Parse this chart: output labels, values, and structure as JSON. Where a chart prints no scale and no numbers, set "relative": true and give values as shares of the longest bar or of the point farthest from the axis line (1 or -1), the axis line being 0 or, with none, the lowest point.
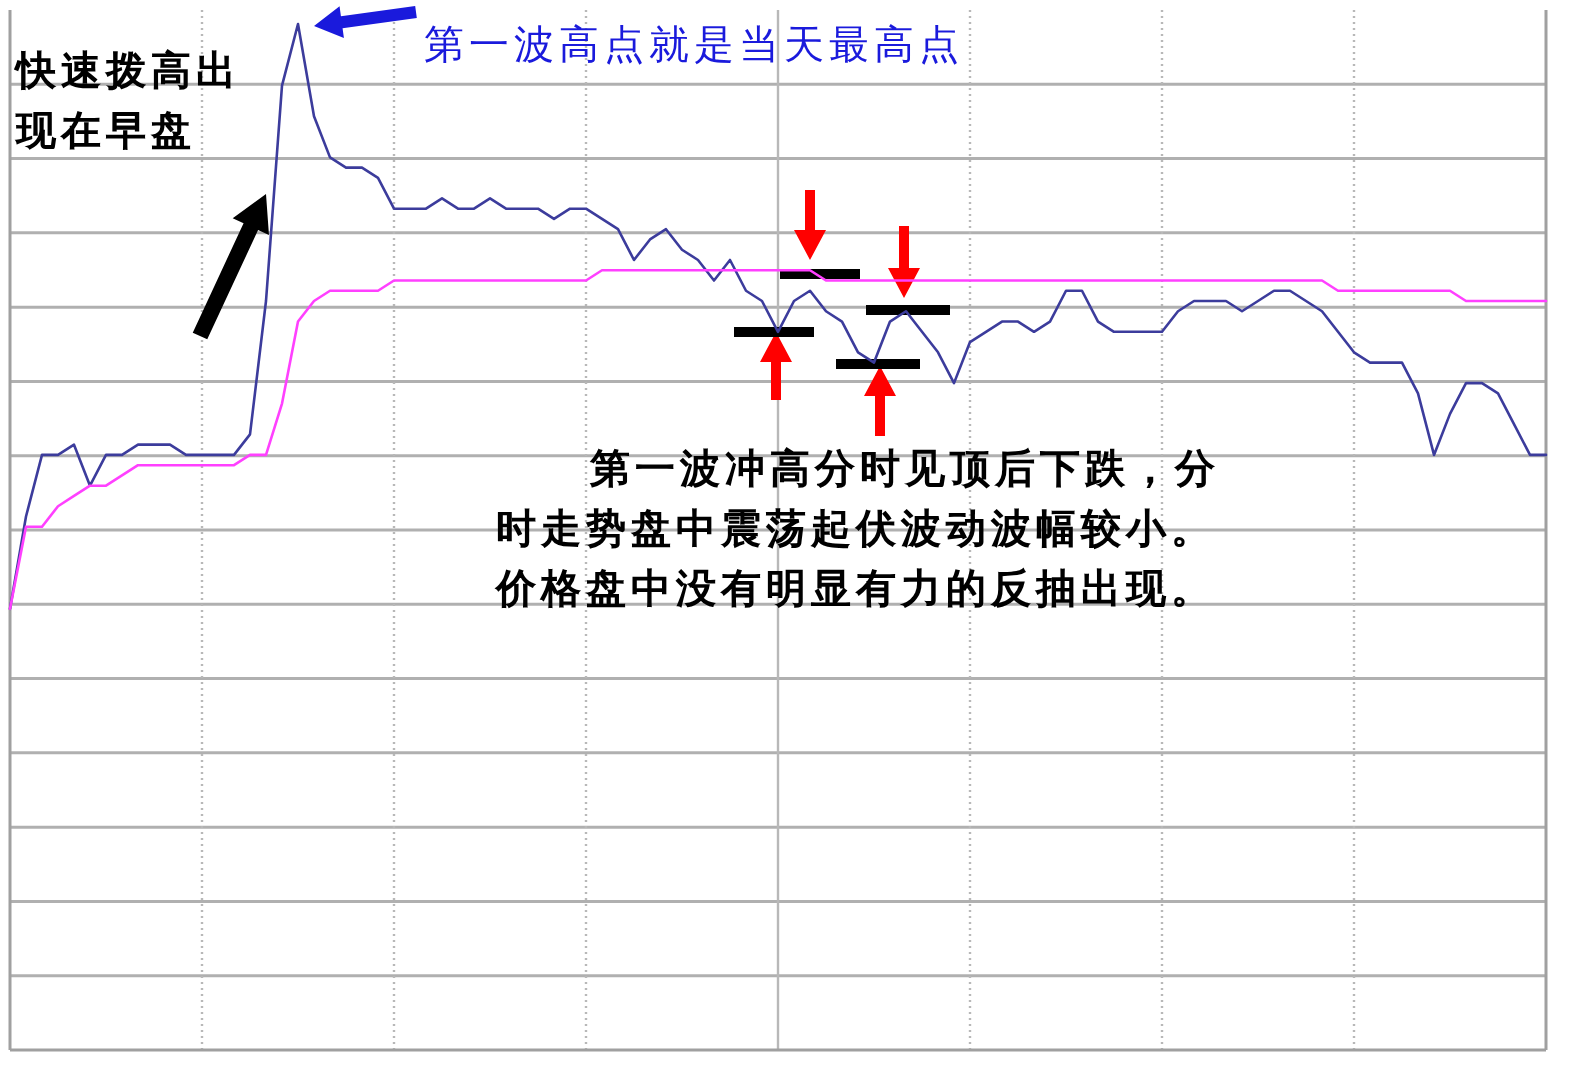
{
  "chart_data": {
    "type": "line",
    "relative": true,
    "grid": true,
    "marker": "none",
    "line_style": "solid",
    "categories": [
      null,
      null,
      null,
      null,
      null,
      null,
      null,
      null,
      null,
      null,
      null,
      null,
      null,
      null,
      null,
      null,
      null,
      null,
      null,
      null,
      null,
      null,
      null,
      null,
      null,
      null,
      null,
      null,
      null,
      null,
      null,
      null,
      null,
      null,
      null,
      null,
      null,
      null,
      null,
      null,
      null,
      null,
      null,
      null,
      null,
      null,
      null,
      null,
      null,
      null,
      null,
      null,
      null,
      null,
      null,
      null,
      null,
      null,
      null,
      null,
      null,
      null,
      null,
      null,
      null,
      null,
      null,
      null,
      null,
      null,
      null,
      null,
      null,
      null,
      null,
      null,
      null,
      null,
      null,
      null,
      null,
      null,
      null,
      null,
      null,
      null,
      null,
      null,
      null,
      null,
      null,
      null,
      null,
      null,
      null,
      null,
      null
    ],
    "series": [
      {
        "color": "#3c3c9c",
        "values": [
          0.43,
          0.52,
          0.58,
          0.58,
          0.59,
          0.55,
          0.58,
          0.58,
          0.59,
          0.59,
          0.59,
          0.58,
          0.58,
          0.58,
          0.58,
          0.6,
          0.73,
          0.94,
          1,
          0.91,
          0.87,
          0.86,
          0.86,
          0.85,
          0.82,
          0.82,
          0.82,
          0.83,
          0.82,
          0.82,
          0.83,
          0.82,
          0.82,
          0.82,
          0.81,
          0.82,
          0.82,
          0.81,
          0.8,
          0.77,
          0.79,
          0.8,
          0.78,
          0.77,
          0.75,
          0.77,
          0.74,
          0.73,
          0.7,
          0.73,
          0.74,
          0.72,
          0.71,
          0.68,
          0.67,
          0.71,
          0.72,
          0.7,
          0.68,
          0.65,
          0.69,
          0.7,
          0.71,
          0.71,
          0.7,
          0.71,
          0.74,
          0.74,
          0.71,
          0.7,
          0.7,
          0.7,
          0.7,
          0.72,
          0.73,
          0.73,
          0.73,
          0.72,
          0.73,
          0.74,
          0.74,
          0.73,
          0.72,
          0.7,
          0.68,
          0.67,
          0.67,
          0.67,
          0.64,
          0.58,
          0.62,
          0.65,
          0.65,
          0.64,
          0.61,
          0.58,
          0.58
        ]
      },
      {
        "color": "#ff40ff",
        "values": [
          0.43,
          0.51,
          0.51,
          0.53,
          0.54,
          0.55,
          0.55,
          0.56,
          0.57,
          0.57,
          0.57,
          0.57,
          0.57,
          0.57,
          0.57,
          0.58,
          0.58,
          0.63,
          0.71,
          0.73,
          0.74,
          0.74,
          0.74,
          0.74,
          0.75,
          0.75,
          0.75,
          0.75,
          0.75,
          0.75,
          0.75,
          0.75,
          0.75,
          0.75,
          0.75,
          0.75,
          0.75,
          0.76,
          0.76,
          0.76,
          0.76,
          0.76,
          0.76,
          0.76,
          0.76,
          0.76,
          0.76,
          0.76,
          0.76,
          0.76,
          0.76,
          0.75,
          0.75,
          0.75,
          0.75,
          0.75,
          0.75,
          0.75,
          0.75,
          0.75,
          0.75,
          0.75,
          0.75,
          0.75,
          0.75,
          0.75,
          0.75,
          0.75,
          0.75,
          0.75,
          0.75,
          0.75,
          0.75,
          0.75,
          0.75,
          0.75,
          0.75,
          0.75,
          0.75,
          0.75,
          0.75,
          0.75,
          0.75,
          0.74,
          0.74,
          0.74,
          0.74,
          0.74,
          0.74,
          0.74,
          0.74,
          0.73,
          0.73,
          0.73,
          0.73,
          0.73,
          0.73
        ]
      }
    ],
    "annotations": [
      "快速拨高出现在早盘",
      "第一波高点就是当天最高点",
      "第一波冲高分时见顶后下跌，分时走势盘中震荡起伏波动波幅较小。价格盘中没有明显有力的反抽出现。"
    ]
  }
}
